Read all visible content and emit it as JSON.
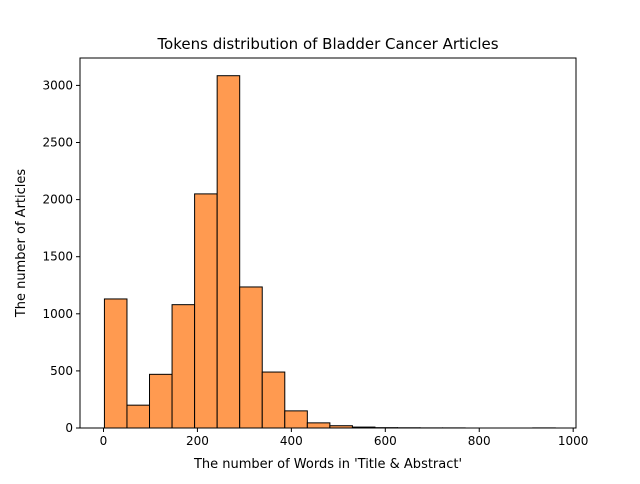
{
  "chart_data": {
    "type": "bar",
    "title": "Tokens distribution of Bladder Cancer Articles",
    "xlabel": "The number of Words in  'Title & Abstract'",
    "ylabel": "The number of Articles",
    "xlim": [
      -50,
      1006
    ],
    "ylim": [
      0,
      3240
    ],
    "xticks": [
      0,
      200,
      400,
      600,
      800,
      1000
    ],
    "yticks": [
      0,
      500,
      1000,
      1500,
      2000,
      2500,
      3000
    ],
    "bin_edges": [
      2,
      50,
      98,
      146,
      194,
      242,
      290,
      338,
      386,
      434,
      482,
      530,
      578,
      626,
      674,
      722,
      770,
      818,
      866,
      914,
      962
    ],
    "counts": [
      1130,
      200,
      470,
      1080,
      2050,
      3085,
      1235,
      490,
      150,
      45,
      20,
      8,
      3,
      2,
      1,
      1,
      0,
      0,
      0,
      1
    ],
    "bar_color": "#FF9A50",
    "edge_color": "#000000",
    "grid": false,
    "legend": "none"
  }
}
